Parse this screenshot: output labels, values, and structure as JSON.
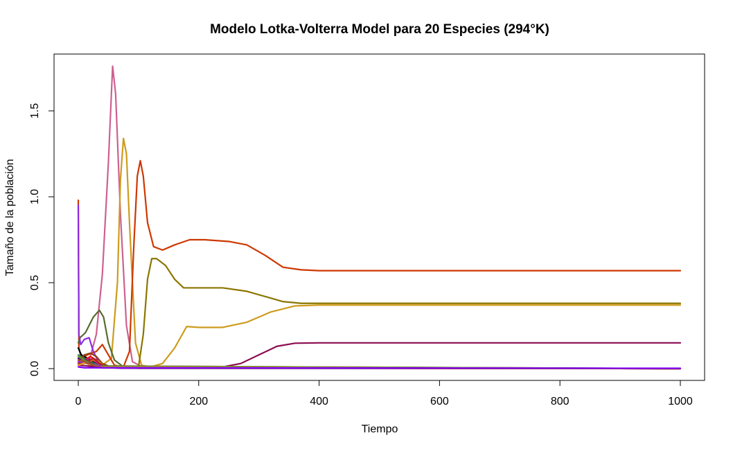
{
  "chart_data": {
    "type": "line",
    "title": "Modelo Lotka-Volterra Model para 20 Especies (294°K)",
    "xlabel": "Tiempo",
    "ylabel": "Tamaño de la población",
    "xlim": [
      0,
      1000
    ],
    "ylim": [
      0,
      1.75
    ],
    "x_ticks": [
      0,
      200,
      400,
      600,
      800,
      1000
    ],
    "y_ticks": [
      0.0,
      0.5,
      1.0,
      1.5
    ],
    "x_tick_labels": [
      "0",
      "200",
      "400",
      "600",
      "800",
      "1000"
    ],
    "y_tick_labels": [
      "0.0",
      "0.5",
      "1.0",
      "1.5"
    ],
    "grid": false,
    "legend": "none",
    "series": [
      {
        "color": "#cd6090",
        "points": [
          [
            0,
            0.05
          ],
          [
            10,
            0.04
          ],
          [
            20,
            0.07
          ],
          [
            30,
            0.2
          ],
          [
            40,
            0.55
          ],
          [
            50,
            1.2
          ],
          [
            57,
            1.76
          ],
          [
            62,
            1.6
          ],
          [
            70,
            0.9
          ],
          [
            80,
            0.25
          ],
          [
            90,
            0.04
          ],
          [
            110,
            0.003
          ],
          [
            1000,
            0.0
          ]
        ]
      },
      {
        "color": "#cd9b1d",
        "points": [
          [
            0,
            0.05
          ],
          [
            20,
            0.02
          ],
          [
            40,
            0.02
          ],
          [
            55,
            0.06
          ],
          [
            65,
            0.5
          ],
          [
            70,
            1.1
          ],
          [
            75,
            1.34
          ],
          [
            80,
            1.25
          ],
          [
            85,
            0.85
          ],
          [
            95,
            0.15
          ],
          [
            105,
            0.02
          ],
          [
            120,
            0.01
          ],
          [
            140,
            0.03
          ],
          [
            160,
            0.12
          ],
          [
            180,
            0.245
          ],
          [
            200,
            0.24
          ],
          [
            240,
            0.24
          ],
          [
            280,
            0.27
          ],
          [
            320,
            0.33
          ],
          [
            360,
            0.365
          ],
          [
            400,
            0.37
          ],
          [
            1000,
            0.37
          ]
        ]
      },
      {
        "color": "#cd3700",
        "points": [
          [
            0,
            0.98
          ],
          [
            1,
            0.12
          ],
          [
            5,
            0.06
          ],
          [
            15,
            0.08
          ],
          [
            30,
            0.1
          ],
          [
            40,
            0.14
          ],
          [
            50,
            0.08
          ],
          [
            60,
            0.02
          ],
          [
            75,
            0.01
          ],
          [
            85,
            0.1
          ],
          [
            92,
            0.7
          ],
          [
            98,
            1.12
          ],
          [
            103,
            1.21
          ],
          [
            108,
            1.12
          ],
          [
            115,
            0.85
          ],
          [
            125,
            0.71
          ],
          [
            140,
            0.69
          ],
          [
            160,
            0.72
          ],
          [
            185,
            0.75
          ],
          [
            210,
            0.75
          ],
          [
            250,
            0.74
          ],
          [
            280,
            0.72
          ],
          [
            310,
            0.66
          ],
          [
            340,
            0.59
          ],
          [
            370,
            0.575
          ],
          [
            400,
            0.57
          ],
          [
            1000,
            0.57
          ]
        ]
      },
      {
        "color": "#8b7500",
        "points": [
          [
            0,
            0.05
          ],
          [
            40,
            0.01
          ],
          [
            80,
            0.005
          ],
          [
            100,
            0.01
          ],
          [
            108,
            0.2
          ],
          [
            115,
            0.52
          ],
          [
            122,
            0.64
          ],
          [
            130,
            0.64
          ],
          [
            145,
            0.6
          ],
          [
            160,
            0.52
          ],
          [
            175,
            0.47
          ],
          [
            190,
            0.47
          ],
          [
            240,
            0.47
          ],
          [
            280,
            0.45
          ],
          [
            310,
            0.42
          ],
          [
            340,
            0.39
          ],
          [
            370,
            0.38
          ],
          [
            1000,
            0.38
          ]
        ]
      },
      {
        "color": "#8b0a50",
        "points": [
          [
            0,
            0.02
          ],
          [
            50,
            0.005
          ],
          [
            100,
            0.002
          ],
          [
            200,
            0.002
          ],
          [
            240,
            0.01
          ],
          [
            270,
            0.03
          ],
          [
            300,
            0.08
          ],
          [
            330,
            0.13
          ],
          [
            360,
            0.148
          ],
          [
            400,
            0.15
          ],
          [
            1000,
            0.15
          ]
        ]
      },
      {
        "color": "#556b2f",
        "points": [
          [
            0,
            0.15
          ],
          [
            3,
            0.18
          ],
          [
            12,
            0.21
          ],
          [
            25,
            0.3
          ],
          [
            35,
            0.34
          ],
          [
            42,
            0.3
          ],
          [
            50,
            0.15
          ],
          [
            60,
            0.05
          ],
          [
            75,
            0.01
          ],
          [
            100,
            0.002
          ],
          [
            1000,
            0.0
          ]
        ]
      },
      {
        "color": "#8a2be2",
        "points": [
          [
            0,
            0.95
          ],
          [
            1,
            0.2
          ],
          [
            4,
            0.14
          ],
          [
            10,
            0.17
          ],
          [
            18,
            0.18
          ],
          [
            25,
            0.1
          ],
          [
            35,
            0.03
          ],
          [
            50,
            0.006
          ],
          [
            70,
            0.002
          ],
          [
            1000,
            0.0
          ]
        ]
      },
      {
        "color": "#000000",
        "points": [
          [
            0,
            0.12
          ],
          [
            5,
            0.08
          ],
          [
            15,
            0.06
          ],
          [
            25,
            0.04
          ],
          [
            35,
            0.02
          ],
          [
            50,
            0.005
          ],
          [
            1000,
            0.0
          ]
        ]
      },
      {
        "color": "#ff0000",
        "points": [
          [
            0,
            0.03
          ],
          [
            10,
            0.05
          ],
          [
            20,
            0.07
          ],
          [
            30,
            0.05
          ],
          [
            40,
            0.02
          ],
          [
            55,
            0.005
          ],
          [
            1000,
            0.0
          ]
        ]
      },
      {
        "color": "#2e8b57",
        "points": [
          [
            0,
            0.08
          ],
          [
            10,
            0.06
          ],
          [
            20,
            0.04
          ],
          [
            30,
            0.025
          ],
          [
            45,
            0.008
          ],
          [
            1000,
            0.0
          ]
        ]
      },
      {
        "color": "#8b4513",
        "points": [
          [
            0,
            0.04
          ],
          [
            10,
            0.08
          ],
          [
            20,
            0.09
          ],
          [
            30,
            0.07
          ],
          [
            40,
            0.03
          ],
          [
            55,
            0.008
          ],
          [
            1000,
            0.0
          ]
        ]
      },
      {
        "color": "#c71585",
        "points": [
          [
            0,
            0.05
          ],
          [
            8,
            0.04
          ],
          [
            18,
            0.06
          ],
          [
            28,
            0.04
          ],
          [
            40,
            0.015
          ],
          [
            1000,
            0.0
          ]
        ]
      },
      {
        "color": "#d2691e",
        "points": [
          [
            0,
            0.02
          ],
          [
            10,
            0.03
          ],
          [
            25,
            0.05
          ],
          [
            35,
            0.04
          ],
          [
            45,
            0.01
          ],
          [
            1000,
            0.0
          ]
        ]
      },
      {
        "color": "#4b0082",
        "points": [
          [
            0,
            0.06
          ],
          [
            12,
            0.05
          ],
          [
            22,
            0.03
          ],
          [
            35,
            0.01
          ],
          [
            1000,
            0.0
          ]
        ]
      },
      {
        "color": "#b22222",
        "points": [
          [
            0,
            0.03
          ],
          [
            15,
            0.04
          ],
          [
            25,
            0.06
          ],
          [
            35,
            0.03
          ],
          [
            50,
            0.005
          ],
          [
            1000,
            0.0
          ]
        ]
      },
      {
        "color": "#6b8e23",
        "points": [
          [
            0,
            0.07
          ],
          [
            10,
            0.05
          ],
          [
            20,
            0.03
          ],
          [
            30,
            0.015
          ],
          [
            1000,
            0.0
          ]
        ]
      },
      {
        "color": "#9932cc",
        "points": [
          [
            0,
            0.04
          ],
          [
            15,
            0.03
          ],
          [
            30,
            0.02
          ],
          [
            45,
            0.005
          ],
          [
            1000,
            0.0
          ]
        ]
      },
      {
        "color": "#daa520",
        "points": [
          [
            0,
            0.02
          ],
          [
            12,
            0.035
          ],
          [
            22,
            0.025
          ],
          [
            35,
            0.008
          ],
          [
            1000,
            0.0
          ]
        ]
      },
      {
        "color": "#a0522d",
        "points": [
          [
            0,
            0.05
          ],
          [
            10,
            0.04
          ],
          [
            25,
            0.02
          ],
          [
            40,
            0.004
          ],
          [
            1000,
            0.0
          ]
        ]
      },
      {
        "color": "#7f00ff",
        "points": [
          [
            0,
            0.01
          ],
          [
            10,
            0.005
          ],
          [
            1000,
            0.002
          ]
        ]
      }
    ]
  }
}
